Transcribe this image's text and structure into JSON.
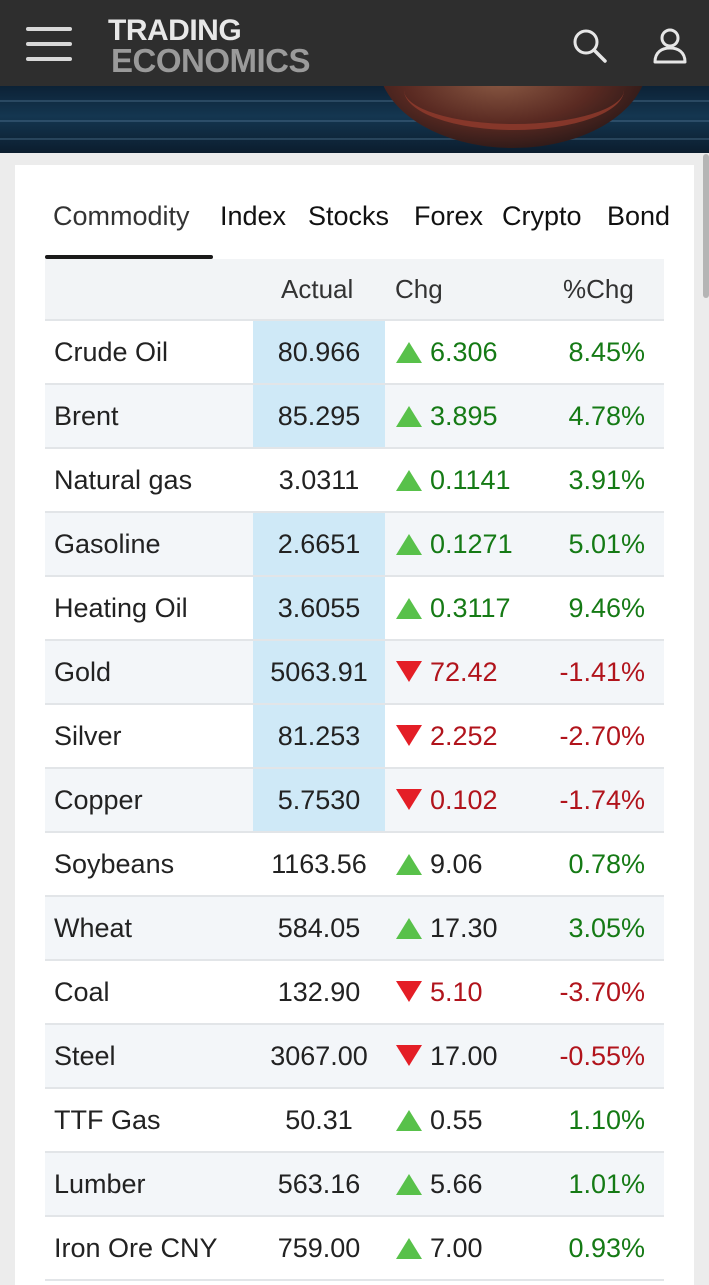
{
  "header": {
    "logo_line1": "TRADING",
    "logo_line2": "ECONOMICS",
    "menu_icon": "hamburger-menu-icon",
    "search_icon": "search-icon",
    "user_icon": "user-icon",
    "background_color": "#2e2e2e"
  },
  "tabs": [
    {
      "label": "Commodity",
      "active": true
    },
    {
      "label": "Index",
      "active": false
    },
    {
      "label": "Stocks",
      "active": false
    },
    {
      "label": "Forex",
      "active": false
    },
    {
      "label": "Crypto",
      "active": false
    },
    {
      "label": "Bond",
      "active": false
    }
  ],
  "table": {
    "columns": [
      "",
      "Actual",
      "Chg",
      "%Chg"
    ],
    "rows": [
      {
        "name": "Crude Oil",
        "actual": "80.966",
        "direction": "up",
        "chg": "6.306",
        "pct": "8.45%",
        "highlight": true
      },
      {
        "name": "Brent",
        "actual": "85.295",
        "direction": "up",
        "chg": "3.895",
        "pct": "4.78%",
        "highlight": true
      },
      {
        "name": "Natural gas",
        "actual": "3.0311",
        "direction": "up",
        "chg": "0.1141",
        "pct": "3.91%",
        "highlight": false
      },
      {
        "name": "Gasoline",
        "actual": "2.6651",
        "direction": "up",
        "chg": "0.1271",
        "pct": "5.01%",
        "highlight": true
      },
      {
        "name": "Heating Oil",
        "actual": "3.6055",
        "direction": "up",
        "chg": "0.3117",
        "pct": "9.46%",
        "highlight": true
      },
      {
        "name": "Gold",
        "actual": "5063.91",
        "direction": "down",
        "chg": "72.42",
        "pct": "-1.41%",
        "highlight": true
      },
      {
        "name": "Silver",
        "actual": "81.253",
        "direction": "down",
        "chg": "2.252",
        "pct": "-2.70%",
        "highlight": true
      },
      {
        "name": "Copper",
        "actual": "5.7530",
        "direction": "down",
        "chg": "0.102",
        "pct": "-1.74%",
        "highlight": true
      },
      {
        "name": "Soybeans",
        "actual": "1163.56",
        "direction": "up",
        "chg": "9.06",
        "pct": "0.78%",
        "highlight": false
      },
      {
        "name": "Wheat",
        "actual": "584.05",
        "direction": "up",
        "chg": "17.30",
        "pct": "3.05%",
        "highlight": false
      },
      {
        "name": "Coal",
        "actual": "132.90",
        "direction": "down",
        "chg": "5.10",
        "pct": "-3.70%",
        "highlight": false
      },
      {
        "name": "Steel",
        "actual": "3067.00",
        "direction": "down",
        "chg": "17.00",
        "pct": "-0.55%",
        "highlight": false
      },
      {
        "name": "TTF Gas",
        "actual": "50.31",
        "direction": "up",
        "chg": "0.55",
        "pct": "1.10%",
        "highlight": false
      },
      {
        "name": "Lumber",
        "actual": "563.16",
        "direction": "up",
        "chg": "5.66",
        "pct": "1.01%",
        "highlight": false
      },
      {
        "name": "Iron Ore CNY",
        "actual": "759.00",
        "direction": "up",
        "chg": "7.00",
        "pct": "0.93%",
        "highlight": false
      }
    ]
  },
  "colors": {
    "positive": "#157a15",
    "negative": "#b1141c",
    "up_arrow": "#58c14a",
    "down_arrow": "#e41e26",
    "actual_highlight": "#cfe9f7"
  }
}
